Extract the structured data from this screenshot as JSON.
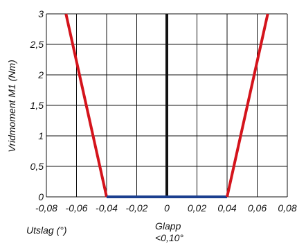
{
  "chart_data": {
    "type": "line",
    "title": "",
    "xlabel": "Utslag (°)",
    "ylabel": "Vridmoment M1 (Nm)",
    "annotation": {
      "line1": "Glapp",
      "line2": "<0,10°"
    },
    "xlim": [
      -0.08,
      0.08
    ],
    "ylim": [
      0,
      3
    ],
    "x_ticks": [
      -0.08,
      -0.06,
      -0.04,
      -0.02,
      0,
      0.02,
      0.04,
      0.06,
      0.08
    ],
    "x_tick_labels": [
      "-0,08",
      "-0,06",
      "-0,04",
      "-0,02",
      "0",
      "0,02",
      "0,04",
      "0,06",
      "0,08"
    ],
    "y_ticks": [
      0,
      0.5,
      1,
      1.5,
      2,
      2.5,
      3
    ],
    "y_tick_labels": [
      "0",
      "0,5",
      "1",
      "1,5",
      "2",
      "2,5",
      "3"
    ],
    "grid": true,
    "series": [
      {
        "color": "#d4141c",
        "x": [
          -0.067,
          -0.04
        ],
        "y": [
          3,
          0
        ]
      },
      {
        "color": "#1b3f8f",
        "x": [
          -0.04,
          0.04
        ],
        "y": [
          0,
          0
        ]
      },
      {
        "color": "#d4141c",
        "x": [
          0.04,
          0.067
        ],
        "y": [
          0,
          3
        ]
      }
    ],
    "zero_line_color": "#111111"
  }
}
